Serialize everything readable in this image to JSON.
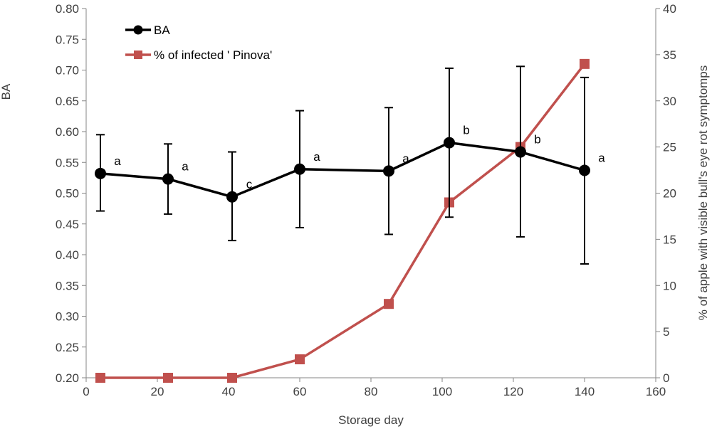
{
  "chart_data": {
    "type": "line",
    "title": "",
    "xlabel": "Storage day",
    "ylabel_left": "BA",
    "ylabel_right": "% of apple with visible bull's eye rot symptomps",
    "xlim": [
      0,
      160
    ],
    "x_ticks": [
      "0",
      "20",
      "40",
      "60",
      "80",
      "100",
      "120",
      "140",
      "160"
    ],
    "ylim_left": [
      0.2,
      0.8
    ],
    "y_ticks_left": [
      "0.20",
      "0.25",
      "0.30",
      "0.35",
      "0.40",
      "0.45",
      "0.50",
      "0.55",
      "0.60",
      "0.65",
      "0.70",
      "0.75",
      "0.80"
    ],
    "ylim_right": [
      0,
      40
    ],
    "y_ticks_right": [
      "0",
      "5",
      "10",
      "15",
      "20",
      "25",
      "30",
      "35",
      "40"
    ],
    "grid": false,
    "legend_position": "top-left",
    "series": [
      {
        "name": "BA",
        "axis": "left",
        "color": "#000000",
        "marker": "circle",
        "x": [
          4,
          23,
          41,
          60,
          85,
          102,
          122,
          140
        ],
        "y": [
          0.532,
          0.523,
          0.494,
          0.539,
          0.536,
          0.582,
          0.567,
          0.537
        ],
        "err_low": [
          0.471,
          0.466,
          0.423,
          0.444,
          0.433,
          0.461,
          0.429,
          0.385
        ],
        "err_high": [
          0.595,
          0.58,
          0.567,
          0.634,
          0.639,
          0.703,
          0.706,
          0.688
        ],
        "labels": [
          "a",
          "a",
          "c",
          "a",
          "a",
          "b",
          "b",
          "a"
        ]
      },
      {
        "name": "% of infected ' Pinova'",
        "axis": "right",
        "color": "#c0504d",
        "marker": "square",
        "x": [
          4,
          23,
          41,
          60,
          85,
          102,
          122,
          140
        ],
        "y": [
          0,
          0,
          0,
          2,
          8,
          19,
          25,
          34
        ]
      }
    ]
  }
}
